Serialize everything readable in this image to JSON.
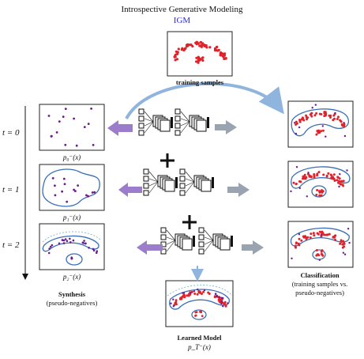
{
  "title": "Introspective Generative Modeling",
  "subtitle": "IGM",
  "training_label": "training samples",
  "time_labels": [
    "t = 0",
    "t = 1",
    "t = 2"
  ],
  "dist_labels": [
    "p₀⁻(x)",
    "p₁⁻(x)",
    "p₂⁻(x)"
  ],
  "synthesis": {
    "title": "Synthesis",
    "note": "(pseudo-negatives)"
  },
  "classification": {
    "title": "Classification",
    "note1": "(training  samples  vs.",
    "note2": "pseudo-negatives)"
  },
  "learned": {
    "title": "Learned Model",
    "formula": "p_T⁻(x)"
  },
  "colors": {
    "positive": "#e0232a",
    "negative": "#6a1b8c",
    "contour": "#3a6fb5",
    "arrow_purple": "#9b7dcc",
    "arrow_gray": "#9aa3b0",
    "arrow_light": "#8fb4dd"
  }
}
